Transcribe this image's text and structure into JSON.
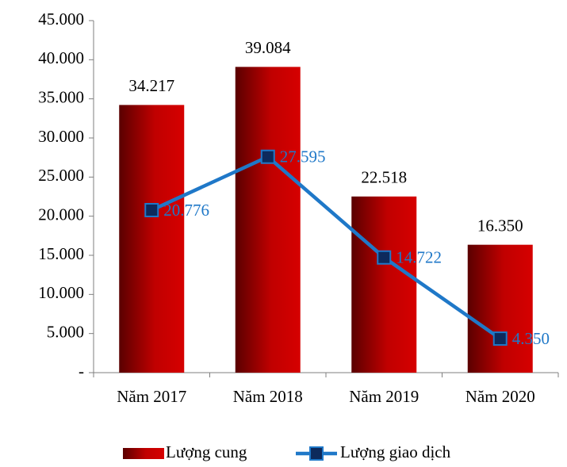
{
  "chart_data": {
    "type": "bar",
    "categories": [
      "Năm 2017",
      "Năm 2018",
      "Năm 2019",
      "Năm 2020"
    ],
    "series": [
      {
        "name": "Lượng cung",
        "type": "bar",
        "color": "#c00000",
        "values": [
          34217,
          39084,
          22518,
          16350
        ],
        "value_labels": [
          "34.217",
          "39.084",
          "22.518",
          "16.350"
        ]
      },
      {
        "name": "Lượng giao dịch",
        "type": "line",
        "color": "#1f78c8",
        "marker_color": "#0d2a5c",
        "values": [
          20776,
          27595,
          14722,
          4350
        ],
        "value_labels": [
          "20.776",
          "27.595",
          "14.722",
          "4.350"
        ]
      }
    ],
    "ylim": [
      0,
      45000
    ],
    "yticks": [
      {
        "value": 0,
        "label": "-"
      },
      {
        "value": 5000,
        "label": "5.000"
      },
      {
        "value": 10000,
        "label": "10.000"
      },
      {
        "value": 15000,
        "label": "15.000"
      },
      {
        "value": 20000,
        "label": "20.000"
      },
      {
        "value": 25000,
        "label": "25.000"
      },
      {
        "value": 30000,
        "label": "30.000"
      },
      {
        "value": 35000,
        "label": "35.000"
      },
      {
        "value": 40000,
        "label": "40.000"
      },
      {
        "value": 45000,
        "label": "45.000"
      }
    ],
    "grid": false,
    "legend": "bottom"
  }
}
